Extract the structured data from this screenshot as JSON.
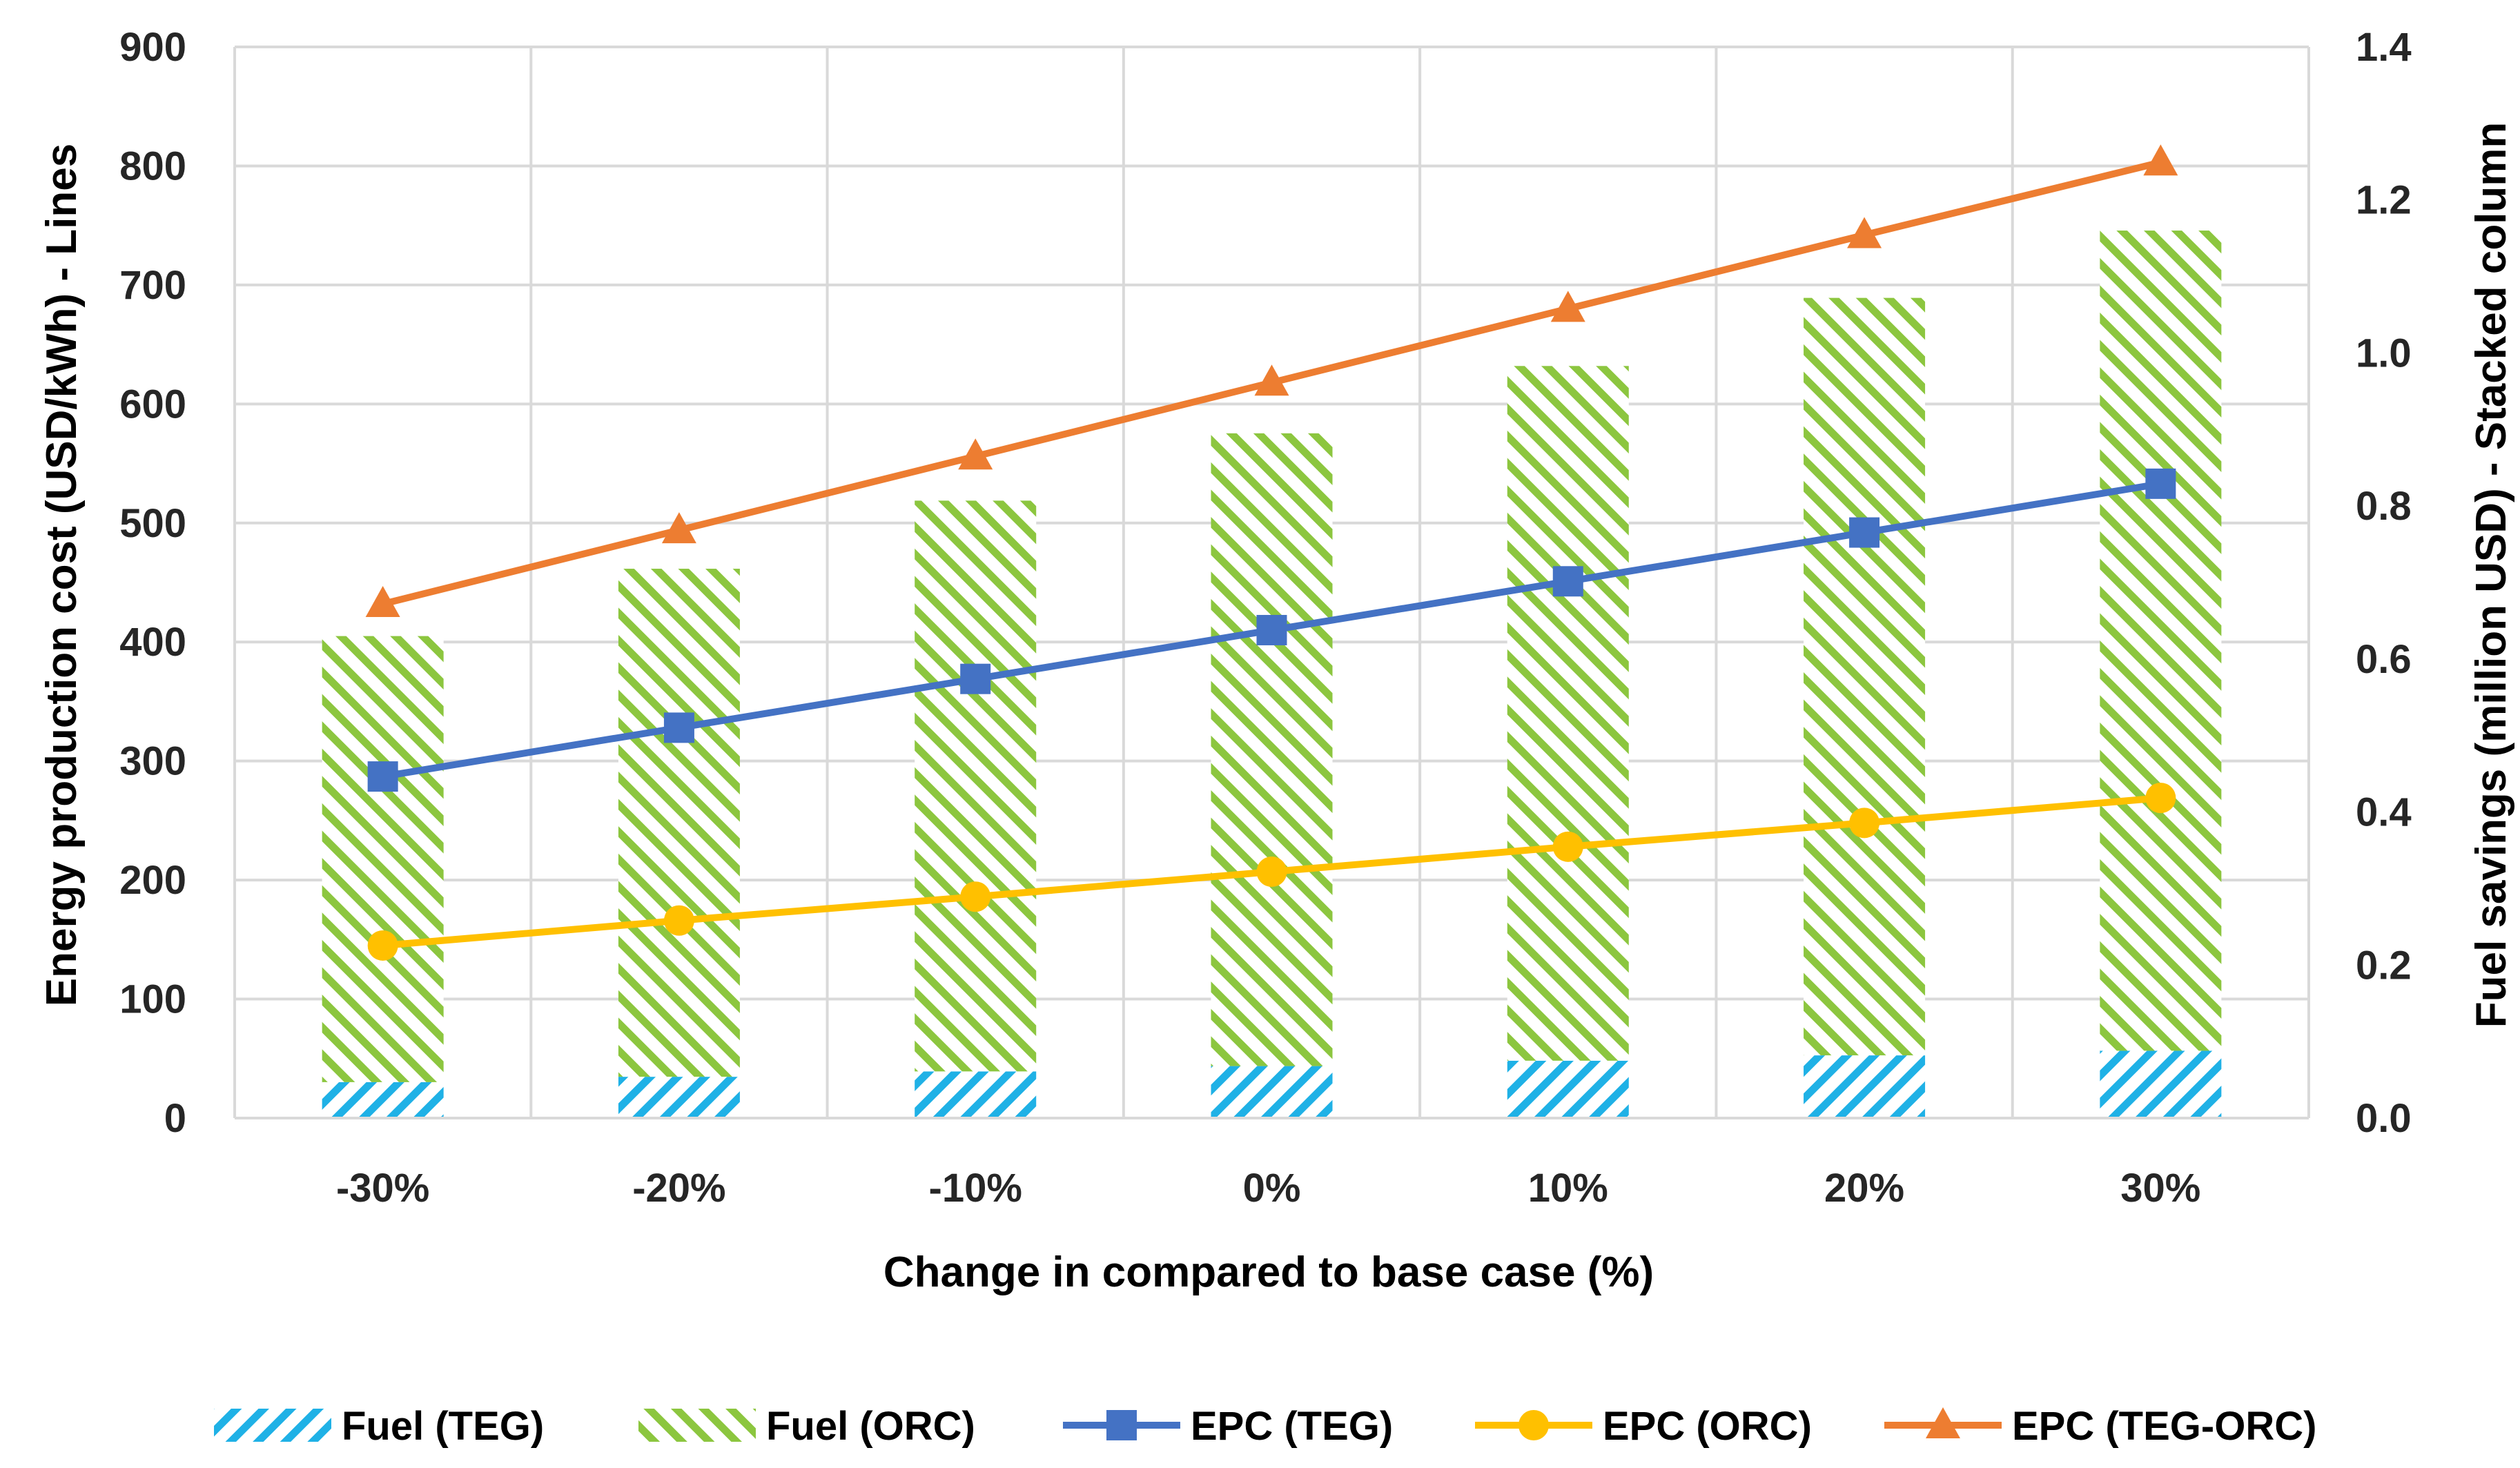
{
  "chart_data": {
    "type": "bar",
    "subtype": "stacked-column-with-lines",
    "categories": [
      "-30%",
      "-20%",
      "-10%",
      "0%",
      "10%",
      "20%",
      "30%"
    ],
    "xlabel": "Change in compared to base case (%)",
    "ylabel": "Energy production cost (USD/kWh) - Lines",
    "y2label": "Fuel savings (million USD) - Stacked column",
    "ylim": [
      0,
      900
    ],
    "y2lim": [
      0,
      1.4
    ],
    "yticks": [
      "0",
      "100",
      "200",
      "300",
      "400",
      "500",
      "600",
      "700",
      "800",
      "900"
    ],
    "y2ticks": [
      "0.0",
      "0.2",
      "0.4",
      "0.6",
      "0.8",
      "1.0",
      "1.2",
      "1.4"
    ],
    "grid": true,
    "legend_position": "bottom",
    "bar_series": [
      {
        "name": "Fuel (TEG)",
        "axis": "right",
        "color": "#1fb1e6",
        "pattern": "diagonal-hatch",
        "values": [
          0.047,
          0.054,
          0.061,
          0.068,
          0.075,
          0.082,
          0.088
        ]
      },
      {
        "name": "Fuel (ORC)",
        "axis": "right",
        "color": "#8cc63f",
        "pattern": "diagonal-hatch",
        "values": [
          0.583,
          0.664,
          0.746,
          0.827,
          0.908,
          0.99,
          1.072
        ]
      }
    ],
    "line_series": [
      {
        "name": "EPC (TEG)",
        "axis": "left",
        "color": "#4472c4",
        "marker": "square",
        "values": [
          287,
          328,
          369,
          410,
          451,
          492,
          533
        ]
      },
      {
        "name": "EPC (ORC)",
        "axis": "left",
        "color": "#ffc000",
        "marker": "circle",
        "values": [
          145,
          166,
          186,
          207,
          228,
          248,
          269
        ]
      },
      {
        "name": "EPC (TEG-ORC)",
        "axis": "left",
        "color": "#ed7d31",
        "marker": "triangle",
        "values": [
          432,
          494,
          556,
          618,
          680,
          742,
          803
        ]
      }
    ]
  }
}
